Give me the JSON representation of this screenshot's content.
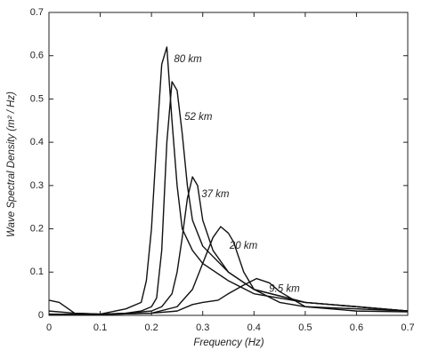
{
  "chart_data": {
    "type": "line",
    "x_label": "Frequency (Hz)",
    "y_label": "Wave Spectral Density (m² / Hz)",
    "xlim": [
      0,
      0.7
    ],
    "ylim": [
      0,
      0.7
    ],
    "xticks": [
      0,
      0.1,
      0.2,
      0.3,
      0.4,
      0.5,
      0.6,
      0.7
    ],
    "yticks": [
      0,
      0.1,
      0.2,
      0.3,
      0.4,
      0.5,
      0.6,
      0.7
    ],
    "series": [
      {
        "name": "80 km",
        "color": "#111111",
        "x": [
          0,
          0.02,
          0.05,
          0.1,
          0.15,
          0.18,
          0.19,
          0.2,
          0.21,
          0.22,
          0.23,
          0.24,
          0.25,
          0.26,
          0.28,
          0.3,
          0.35,
          0.4,
          0.5,
          0.6,
          0.7
        ],
        "values": [
          0.035,
          0.03,
          0.005,
          0.003,
          0.015,
          0.03,
          0.08,
          0.2,
          0.4,
          0.58,
          0.62,
          0.45,
          0.3,
          0.2,
          0.15,
          0.12,
          0.08,
          0.05,
          0.03,
          0.02,
          0.01
        ]
      },
      {
        "name": "52 km",
        "color": "#111111",
        "x": [
          0,
          0.05,
          0.1,
          0.15,
          0.18,
          0.2,
          0.21,
          0.22,
          0.23,
          0.24,
          0.25,
          0.26,
          0.27,
          0.28,
          0.3,
          0.35,
          0.4,
          0.5,
          0.6,
          0.7
        ],
        "values": [
          0.01,
          0.005,
          0.003,
          0.005,
          0.01,
          0.02,
          0.04,
          0.15,
          0.4,
          0.54,
          0.52,
          0.42,
          0.3,
          0.22,
          0.16,
          0.1,
          0.06,
          0.03,
          0.02,
          0.01
        ]
      },
      {
        "name": "37 km",
        "color": "#111111",
        "x": [
          0,
          0.1,
          0.15,
          0.2,
          0.22,
          0.24,
          0.25,
          0.26,
          0.27,
          0.28,
          0.29,
          0.3,
          0.32,
          0.35,
          0.4,
          0.5,
          0.6,
          0.7
        ],
        "values": [
          0.003,
          0.002,
          0.005,
          0.01,
          0.02,
          0.05,
          0.1,
          0.18,
          0.27,
          0.32,
          0.3,
          0.22,
          0.15,
          0.1,
          0.06,
          0.03,
          0.02,
          0.01
        ]
      },
      {
        "name": "20 km",
        "color": "#111111",
        "x": [
          0,
          0.1,
          0.2,
          0.25,
          0.28,
          0.3,
          0.32,
          0.335,
          0.35,
          0.36,
          0.38,
          0.4,
          0.45,
          0.5,
          0.6,
          0.7
        ],
        "values": [
          0.002,
          0.002,
          0.005,
          0.02,
          0.06,
          0.12,
          0.18,
          0.205,
          0.19,
          0.17,
          0.1,
          0.06,
          0.03,
          0.02,
          0.015,
          0.01
        ]
      },
      {
        "name": "9.5 km",
        "color": "#111111",
        "x": [
          0,
          0.1,
          0.2,
          0.25,
          0.28,
          0.3,
          0.33,
          0.35,
          0.38,
          0.405,
          0.43,
          0.45,
          0.5,
          0.55,
          0.6,
          0.7
        ],
        "values": [
          0.002,
          0.002,
          0.005,
          0.01,
          0.025,
          0.03,
          0.035,
          0.05,
          0.07,
          0.085,
          0.075,
          0.055,
          0.02,
          0.015,
          0.01,
          0.008
        ]
      }
    ]
  }
}
